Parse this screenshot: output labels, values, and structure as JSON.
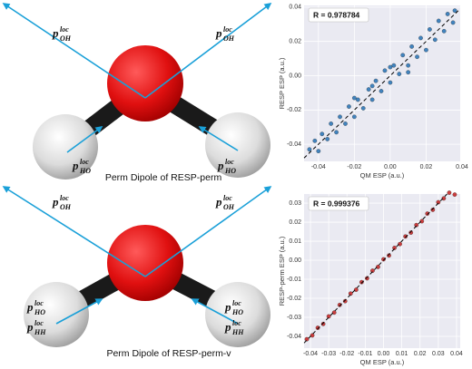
{
  "diagrams": [
    {
      "caption": "Perm Dipole of RESP-perm",
      "labels": [
        {
          "base": "p",
          "sup": "loc",
          "sub": "OH"
        },
        {
          "base": "p",
          "sup": "loc",
          "sub": "OH"
        },
        {
          "base": "p",
          "sup": "loc",
          "sub": "HO"
        },
        {
          "base": "p",
          "sup": "loc",
          "sub": "HO"
        }
      ]
    },
    {
      "caption": "Perm Dipole of RESP-perm-v",
      "labels": [
        {
          "base": "p",
          "sup": "loc",
          "sub": "OH"
        },
        {
          "base": "p",
          "sup": "loc",
          "sub": "OH"
        },
        {
          "base": "p",
          "sup": "loc",
          "sub": "HO"
        },
        {
          "base": "p",
          "sup": "loc",
          "sub": "HO"
        },
        {
          "base": "p",
          "sup": "loc",
          "sub": "HH"
        },
        {
          "base": "p",
          "sup": "loc",
          "sub": "HH"
        }
      ]
    }
  ],
  "chart_data": [
    {
      "type": "scatter",
      "annotation": "R = 0.978784",
      "xlabel": "QM ESP (a.u.)",
      "ylabel": "RESP ESP (a.u.)",
      "color": "#2f78b8",
      "diagonal": true,
      "grid": true,
      "xlim": [
        -0.048,
        0.039
      ],
      "ylim": [
        -0.05,
        0.041
      ],
      "xticks": [
        -0.04,
        -0.02,
        {
          "value": 0,
          "label": "0.00"
        },
        0.02,
        0.04
      ],
      "yticks": [
        -0.04,
        -0.02,
        {
          "value": 0,
          "label": "0.00"
        },
        0.02,
        0.04
      ],
      "x": [
        -0.045,
        -0.042,
        -0.04,
        -0.038,
        -0.035,
        -0.033,
        -0.03,
        -0.028,
        -0.025,
        -0.023,
        -0.02,
        -0.018,
        -0.015,
        -0.012,
        -0.01,
        -0.008,
        -0.005,
        -0.003,
        0,
        0.002,
        0.005,
        0.007,
        0.01,
        0.012,
        0.015,
        0.017,
        0.02,
        0.022,
        0.025,
        0.027,
        0.03,
        0.032,
        0.035,
        0.036,
        -0.02,
        0.01,
        0.0,
        -0.01
      ],
      "y": [
        -0.043,
        -0.038,
        -0.044,
        -0.034,
        -0.037,
        -0.028,
        -0.033,
        -0.024,
        -0.028,
        -0.018,
        -0.024,
        -0.014,
        -0.019,
        -0.008,
        -0.014,
        -0.003,
        -0.009,
        0.003,
        -0.004,
        0.006,
        0.001,
        0.012,
        0.006,
        0.017,
        0.011,
        0.022,
        0.015,
        0.027,
        0.021,
        0.032,
        0.026,
        0.036,
        0.031,
        0.038,
        -0.013,
        0.002,
        0.005,
        -0.006
      ]
    },
    {
      "type": "scatter",
      "annotation": "R = 0.999376",
      "xlabel": "QM ESP (a.u.)",
      "ylabel": "RESP-perm ESP (a.u.)",
      "color": "#c62a2a",
      "diagonal": true,
      "grid": true,
      "xlim": [
        -0.0435,
        0.042
      ],
      "ylim": [
        -0.0462,
        0.0348
      ],
      "xticks": [
        -0.04,
        -0.03,
        -0.02,
        -0.01,
        {
          "value": 0,
          "label": "0.00"
        },
        0.01,
        0.02,
        0.03,
        0.04
      ],
      "yticks": [
        -0.04,
        -0.03,
        -0.02,
        -0.01,
        {
          "value": 0,
          "label": "0.00"
        },
        0.01,
        0.02,
        0.03
      ],
      "x": [
        -0.042,
        -0.039,
        -0.036,
        -0.033,
        -0.03,
        -0.027,
        -0.024,
        -0.021,
        -0.018,
        -0.015,
        -0.012,
        -0.009,
        -0.006,
        -0.003,
        0,
        0.003,
        0.006,
        0.009,
        0.012,
        0.015,
        0.018,
        0.021,
        0.024,
        0.027,
        0.03,
        0.033,
        0.036,
        0.039
      ],
      "y": [
        -0.0415,
        -0.0395,
        -0.0355,
        -0.0335,
        -0.0295,
        -0.0275,
        -0.0235,
        -0.0215,
        -0.0175,
        -0.0155,
        -0.0115,
        -0.0095,
        -0.0055,
        -0.0035,
        0.0005,
        0.0025,
        0.0065,
        0.0085,
        0.0125,
        0.0145,
        0.0185,
        0.0205,
        0.0245,
        0.0265,
        0.0305,
        0.0325,
        0.0355,
        0.0345
      ]
    }
  ]
}
